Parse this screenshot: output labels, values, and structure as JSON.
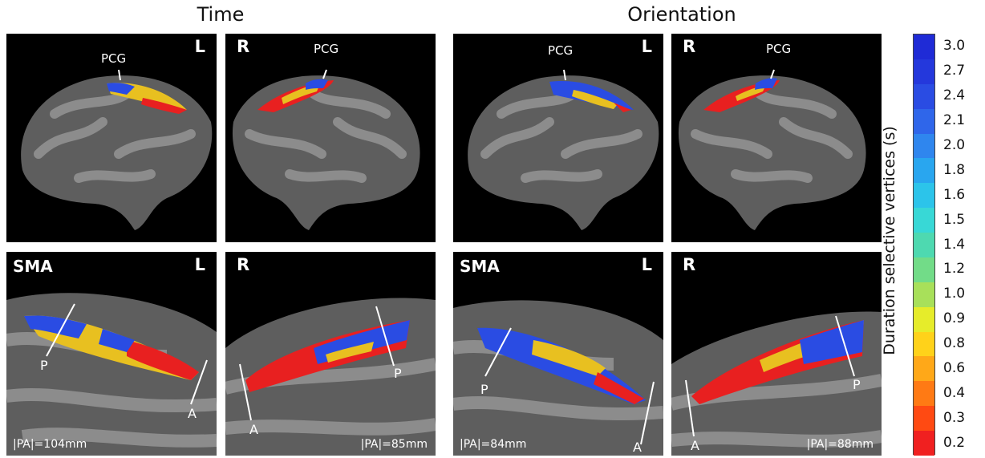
{
  "column_titles": {
    "time": "Time",
    "orientation": "Orientation"
  },
  "hemispheres": {
    "left": "L",
    "right": "R"
  },
  "region_labels": {
    "pcg": "PCG",
    "sma": "SMA",
    "posterior": "P",
    "anterior": "A"
  },
  "pa_lengths": {
    "time_left": "|PA|=104mm",
    "time_right": "|PA|=85mm",
    "orientation_left": "|PA|=84mm",
    "orientation_right": "|PA|=88mm"
  },
  "colorbar": {
    "label": "Duration selective vertices (s)",
    "ticks": [
      "3.0",
      "2.7",
      "2.4",
      "2.1",
      "2.0",
      "1.8",
      "1.6",
      "1.5",
      "1.4",
      "1.2",
      "1.0",
      "0.9",
      "0.8",
      "0.6",
      "0.4",
      "0.3",
      "0.2"
    ],
    "colors": [
      "#1f2bd6",
      "#2438dc",
      "#2a4ce3",
      "#2f66ea",
      "#2f86ee",
      "#29a6ef",
      "#2cc4ea",
      "#38d8d6",
      "#4ed9b0",
      "#72dc88",
      "#a8e05a",
      "#e6ec2a",
      "#ffd21a",
      "#ffa818",
      "#ff7a14",
      "#ff4a12",
      "#f02020"
    ]
  },
  "surface_colors": {
    "brain_dark": "#5e5e5e",
    "brain_light": "#8c8c8c",
    "background": "#000000"
  }
}
